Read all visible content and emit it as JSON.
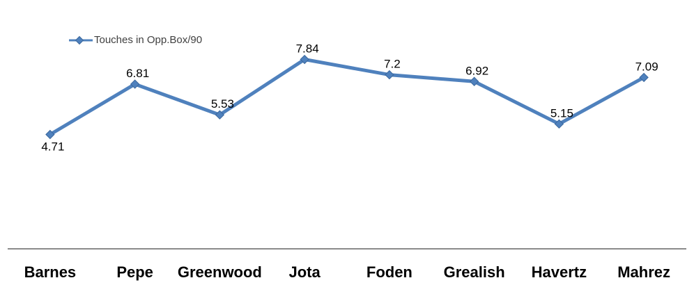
{
  "legend": {
    "label": "Touches in Opp.Box/90"
  },
  "colors": {
    "series_line": "#4F81BD",
    "series_marker": "#4F81BD",
    "marker_border": "#3A679C",
    "axis_line": "#8a8a8a",
    "data_label_text": "#000000",
    "legend_text": "#3f3f3f",
    "category_label_text": "#000000",
    "background": "#ffffff"
  },
  "chart_data": {
    "type": "line",
    "title": "",
    "xlabel": "",
    "ylabel": "",
    "categories": [
      "Barnes",
      "Pepe",
      "Greenwood",
      "Jota",
      "Foden",
      "Grealish",
      "Havertz",
      "Mahrez"
    ],
    "series": [
      {
        "name": "Touches in Opp.Box/90",
        "values": [
          4.71,
          6.81,
          5.53,
          7.84,
          7.2,
          6.92,
          5.15,
          7.09
        ],
        "labels": [
          "4.71",
          "6.81",
          "5.53",
          "7.84",
          "7.2",
          "6.92",
          "5.15",
          "7.09"
        ],
        "label_positions": [
          "below",
          "above",
          "above",
          "above",
          "above",
          "above",
          "above",
          "above"
        ]
      }
    ],
    "ylim": [
      0,
      8.4
    ],
    "grid": false,
    "marker": "diamond",
    "legend_position": "top-left"
  }
}
